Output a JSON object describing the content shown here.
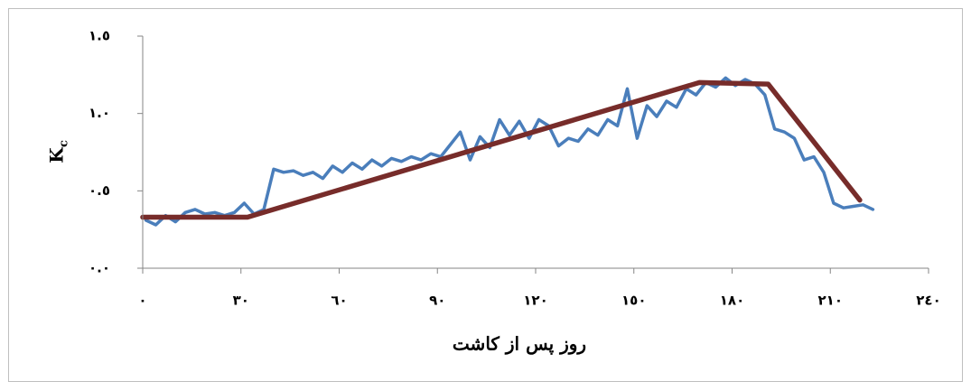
{
  "chart_data": {
    "type": "line",
    "x_label": "روز پس از كاشت",
    "y_label": "K",
    "y_label_subscript": "c",
    "xlim": [
      0,
      240
    ],
    "ylim": [
      0,
      1.5
    ],
    "xticks": [
      {
        "value": 0,
        "label": "٠"
      },
      {
        "value": 30,
        "label": "٣٠"
      },
      {
        "value": 60,
        "label": "٦٠"
      },
      {
        "value": 90,
        "label": "٩٠"
      },
      {
        "value": 120,
        "label": "١٢٠"
      },
      {
        "value": 150,
        "label": "١٥٠"
      },
      {
        "value": 180,
        "label": "١٨٠"
      },
      {
        "value": 210,
        "label": "٢١٠"
      },
      {
        "value": 240,
        "label": "٢٤٠"
      }
    ],
    "yticks": [
      {
        "value": 0,
        "label": "٠.٠"
      },
      {
        "value": 0.5,
        "label": "٠.٥"
      },
      {
        "value": 1.0,
        "label": "١.٠"
      },
      {
        "value": 1.5,
        "label": "١.٥"
      }
    ],
    "series": [
      {
        "color": "#4a7ebb",
        "x": [
          1,
          4,
          7,
          10,
          13,
          16,
          19,
          22,
          25,
          28,
          31,
          34,
          37,
          40,
          43,
          46,
          49,
          52,
          55,
          58,
          61,
          64,
          67,
          70,
          73,
          76,
          79,
          82,
          85,
          88,
          91,
          94,
          97,
          100,
          103,
          106,
          109,
          112,
          115,
          118,
          121,
          124,
          127,
          130,
          133,
          136,
          139,
          142,
          145,
          148,
          151,
          154,
          157,
          160,
          163,
          166,
          169,
          172,
          175,
          178,
          181,
          184,
          187,
          190,
          193,
          196,
          199,
          202,
          205,
          208,
          211,
          214,
          217,
          220,
          223
        ],
        "values": [
          0.31,
          0.28,
          0.34,
          0.3,
          0.36,
          0.38,
          0.35,
          0.36,
          0.34,
          0.36,
          0.42,
          0.35,
          0.38,
          0.64,
          0.62,
          0.63,
          0.6,
          0.62,
          0.58,
          0.66,
          0.62,
          0.68,
          0.64,
          0.7,
          0.66,
          0.71,
          0.69,
          0.72,
          0.7,
          0.74,
          0.72,
          0.8,
          0.88,
          0.7,
          0.85,
          0.78,
          0.96,
          0.86,
          0.95,
          0.84,
          0.96,
          0.92,
          0.79,
          0.84,
          0.82,
          0.9,
          0.86,
          0.96,
          0.92,
          1.16,
          0.84,
          1.05,
          0.98,
          1.08,
          1.04,
          1.16,
          1.12,
          1.2,
          1.17,
          1.23,
          1.18,
          1.22,
          1.19,
          1.12,
          0.9,
          0.88,
          0.84,
          0.7,
          0.72,
          0.62,
          0.42,
          0.39,
          0.4,
          0.41,
          0.38
        ]
      },
      {
        "color": "#772c2a",
        "x": [
          0,
          32,
          170,
          191,
          219
        ],
        "values": [
          0.33,
          0.33,
          1.2,
          1.19,
          0.44
        ]
      }
    ]
  }
}
